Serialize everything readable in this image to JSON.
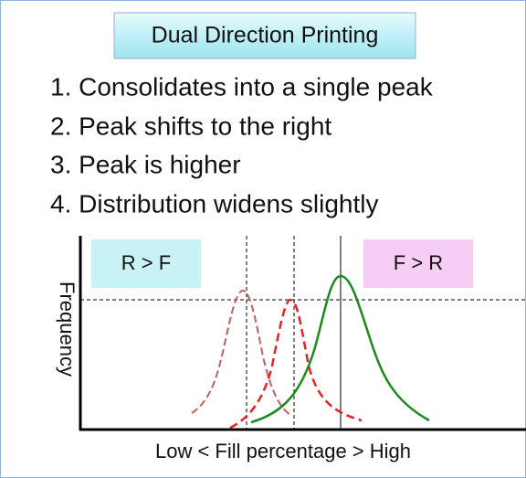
{
  "title": "Dual Direction Printing",
  "points": [
    "1. Consolidates into a single peak",
    "2. Peak shifts to the right",
    "3. Peak is higher",
    "4. Distribution widens slightly"
  ],
  "diagram": {
    "y_label": "Frequency",
    "x_label": "Low < Fill percentage > High",
    "left_box": "R > F",
    "right_box": "F > R"
  }
}
